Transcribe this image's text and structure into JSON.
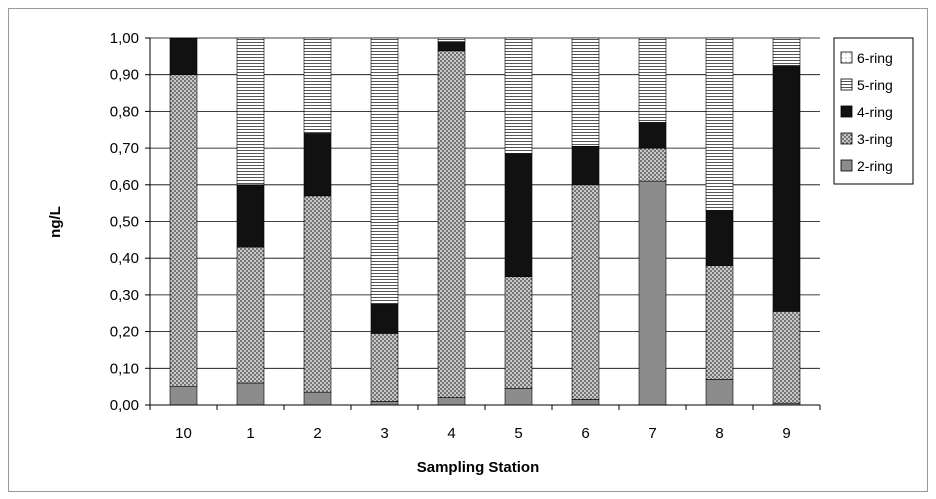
{
  "chart_data": {
    "type": "bar",
    "stacked": true,
    "normalized": true,
    "title": "",
    "xlabel": "Sampling Station",
    "ylabel": "ng/L",
    "ylim": [
      0,
      1
    ],
    "y_ticks": [
      "0,00",
      "0,10",
      "0,20",
      "0,30",
      "0,40",
      "0,50",
      "0,60",
      "0,70",
      "0,80",
      "0,90",
      "1,00"
    ],
    "grid": true,
    "legend_position": "right",
    "categories": [
      "10",
      "1",
      "2",
      "3",
      "4",
      "5",
      "6",
      "7",
      "8",
      "9"
    ],
    "series": [
      {
        "name": "2-ring",
        "pattern": "solid-gray",
        "color": "#8c8c8c",
        "values": [
          0.05,
          0.06,
          0.035,
          0.01,
          0.02,
          0.045,
          0.015,
          0.61,
          0.07,
          0.005
        ]
      },
      {
        "name": "3-ring",
        "pattern": "dotted",
        "color": "#7a7a7a",
        "values": [
          0.85,
          0.37,
          0.535,
          0.185,
          0.945,
          0.305,
          0.585,
          0.09,
          0.31,
          0.25
        ]
      },
      {
        "name": "4-ring",
        "pattern": "solid-black",
        "color": "#111111",
        "values": [
          0.1,
          0.17,
          0.17,
          0.08,
          0.025,
          0.335,
          0.105,
          0.07,
          0.15,
          0.67
        ]
      },
      {
        "name": "5-ring",
        "pattern": "horizontal-lines",
        "color": "#ffffff",
        "values": [
          0.0,
          0.4,
          0.26,
          0.725,
          0.01,
          0.315,
          0.295,
          0.23,
          0.47,
          0.075
        ]
      },
      {
        "name": "6-ring",
        "pattern": "light-dots",
        "color": "#f2f2f2",
        "values": [
          0,
          0,
          0,
          0,
          0,
          0,
          0,
          0,
          0,
          0
        ]
      }
    ],
    "legend_order": [
      "6-ring",
      "5-ring",
      "4-ring",
      "3-ring",
      "2-ring"
    ]
  }
}
